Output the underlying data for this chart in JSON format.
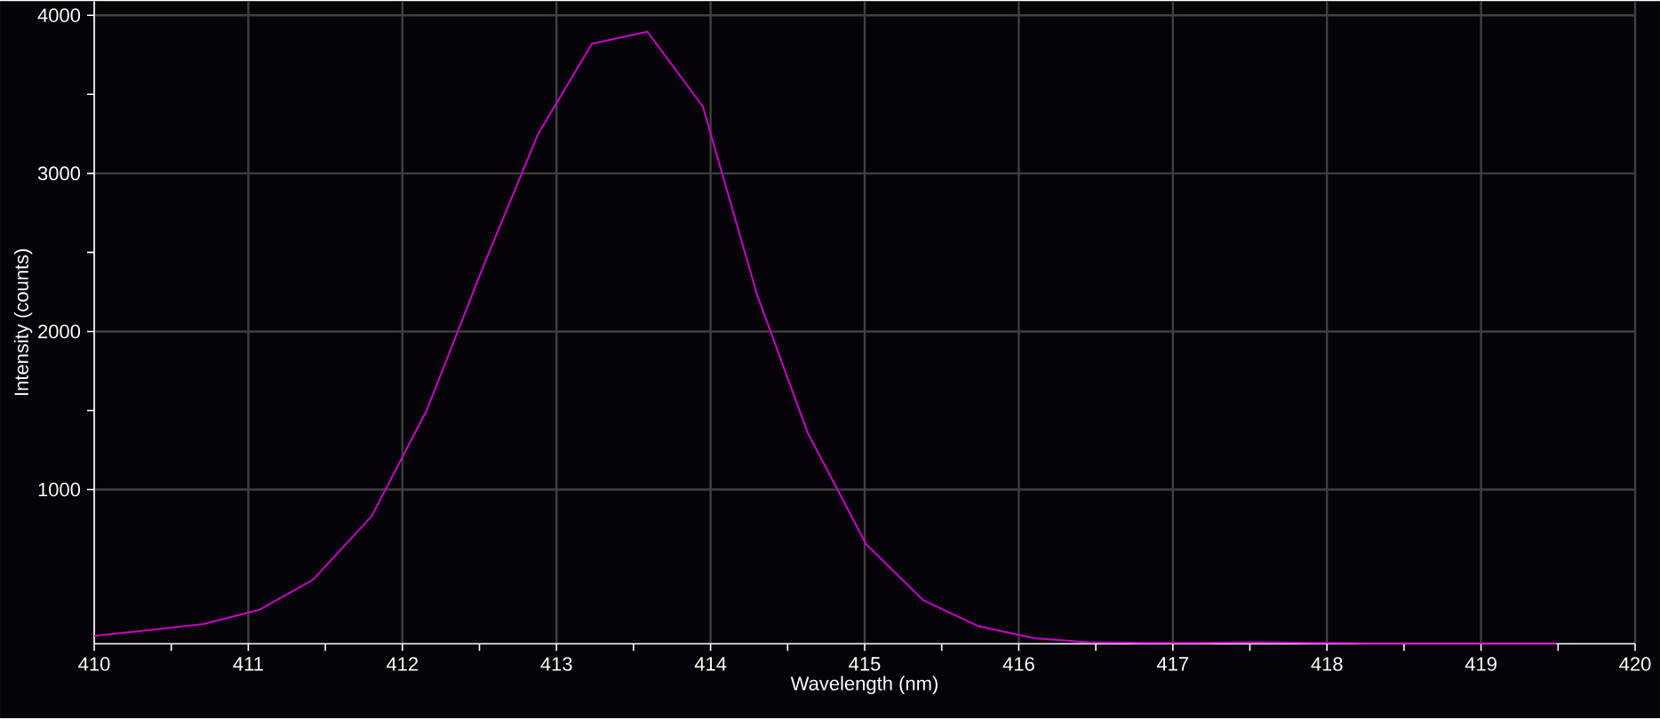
{
  "chart_data": {
    "type": "line",
    "xlabel": "Wavelength (nm)",
    "ylabel": "Intensity (counts)",
    "xlim": [
      410,
      420
    ],
    "ylim": [
      25,
      4090
    ],
    "xticks": [
      410,
      {
        "value": 410.5,
        "label": null
      },
      411,
      {
        "value": 411.5,
        "label": null
      },
      412,
      {
        "value": 412.5,
        "label": null
      },
      413,
      {
        "value": 413.5,
        "label": null
      },
      414,
      {
        "value": 414.5,
        "label": null
      },
      415,
      {
        "value": 415.5,
        "label": null
      },
      416,
      {
        "value": 416.5,
        "label": null
      },
      417,
      {
        "value": 417.5,
        "label": null
      },
      418,
      {
        "value": 418.5,
        "label": null
      },
      419,
      {
        "value": 419.5,
        "label": null
      },
      420
    ],
    "yticks": [
      1000,
      {
        "value": 1500,
        "label": null
      },
      2000,
      {
        "value": 2500,
        "label": null
      },
      3000,
      {
        "value": 3500,
        "label": null
      },
      4000
    ],
    "grid": true,
    "marker": "none",
    "line_style": "solid",
    "x": [
      410.0,
      410.35,
      410.71,
      411.07,
      411.42,
      411.8,
      412.16,
      412.53,
      412.88,
      413.23,
      413.59,
      413.95,
      414.3,
      414.63,
      415.01,
      415.38,
      415.74,
      416.1,
      416.45,
      416.8,
      417.17,
      417.53,
      417.9,
      418.25,
      418.6,
      418.97,
      419.33,
      419.49
    ],
    "series": [
      {
        "color": "#cc00cc",
        "values": [
          75,
          110,
          150,
          239,
          430,
          831,
          1506,
          2424,
          3247,
          3820,
          3896,
          3423,
          2238,
          1360,
          654,
          300,
          135,
          60,
          35,
          30,
          30,
          35,
          30,
          28,
          28,
          28,
          28,
          28
        ]
      }
    ]
  }
}
